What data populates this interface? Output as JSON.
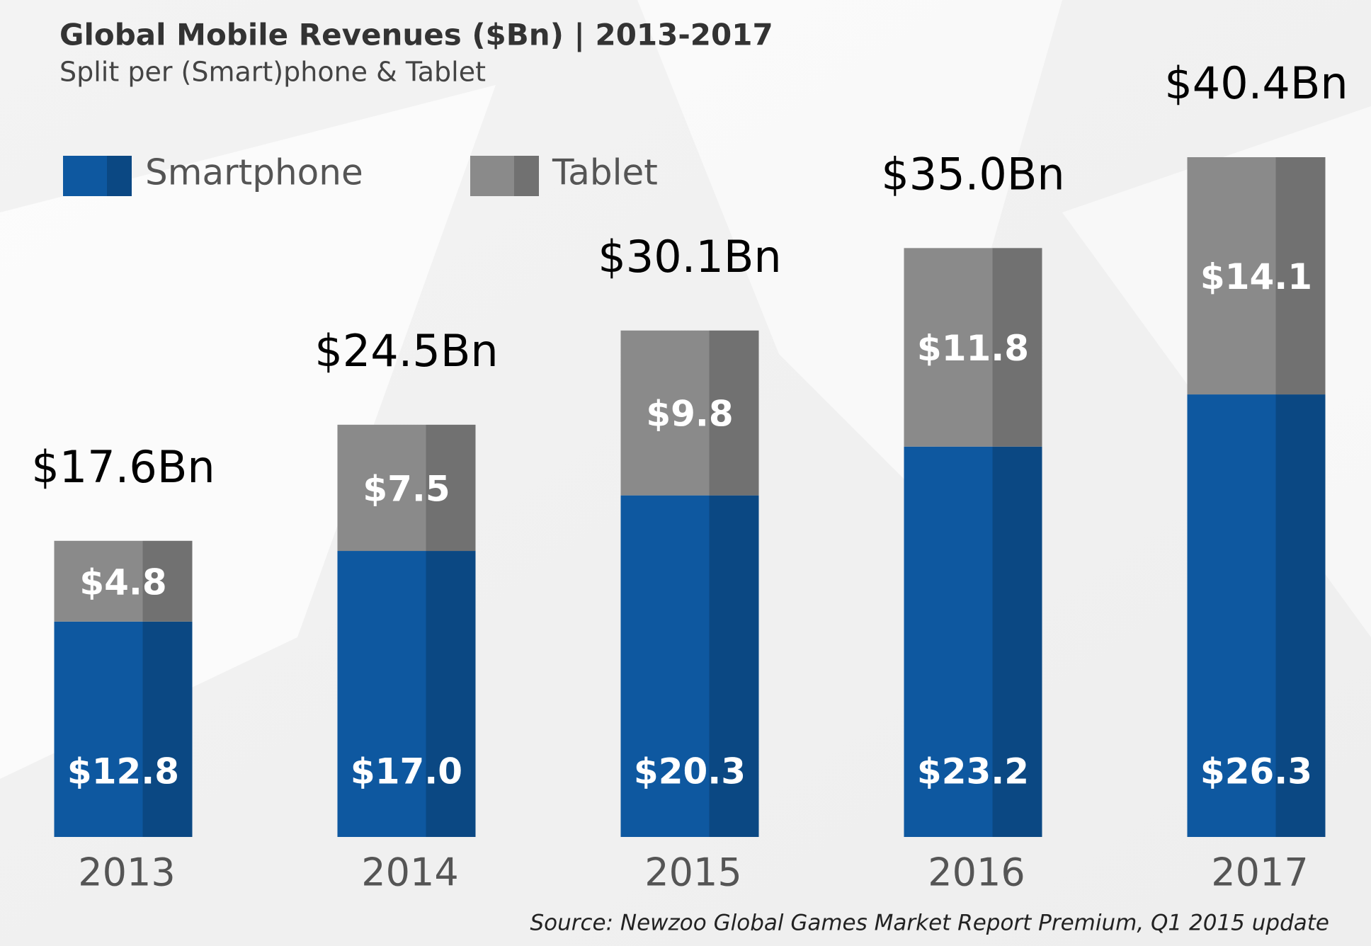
{
  "chart_data": {
    "type": "stacked_bar",
    "title": "Global Mobile Revenues ($Bn) | 2013-2017",
    "subtitle": "Split per (Smart)phone & Tablet",
    "categories": [
      "2013",
      "2014",
      "2015",
      "2016",
      "2017"
    ],
    "series": [
      {
        "name": "Smartphone",
        "color": "#0e58a0",
        "values": [
          12.8,
          17.0,
          20.3,
          23.2,
          26.3
        ],
        "value_labels": [
          "$12.8",
          "$17.0",
          "$20.3",
          "$23.2",
          "$26.3"
        ]
      },
      {
        "name": "Tablet",
        "color": "#8a8a8a",
        "values": [
          4.8,
          7.5,
          9.8,
          11.8,
          14.1
        ],
        "value_labels": [
          "$4.8",
          "$7.5",
          "$9.8",
          "$11.8",
          "$14.1"
        ]
      }
    ],
    "totals": {
      "values": [
        17.6,
        24.5,
        30.1,
        35.0,
        40.4
      ],
      "value_labels": [
        "$17.6Bn",
        "$24.5Bn",
        "$30.1Bn",
        "$35.0Bn",
        "$40.4Bn"
      ]
    },
    "source": "Source: Newzoo Global Games Market Report Premium, Q1 2015 update"
  }
}
